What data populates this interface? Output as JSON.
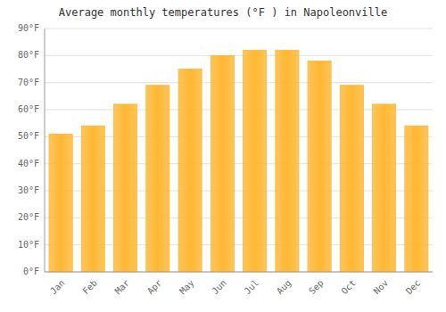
{
  "chart_data": {
    "type": "bar",
    "title": "Average monthly temperatures (°F ) in Napoleonville",
    "categories": [
      "Jan",
      "Feb",
      "Mar",
      "Apr",
      "May",
      "Jun",
      "Jul",
      "Aug",
      "Sep",
      "Oct",
      "Nov",
      "Dec"
    ],
    "values": [
      51,
      54,
      62,
      69,
      75,
      80,
      82,
      82,
      78,
      69,
      62,
      54
    ],
    "color": "#FFB732",
    "ylim": [
      0,
      90
    ],
    "yticks": [
      {
        "value": 0,
        "label": "0°F"
      },
      {
        "value": 10,
        "label": "10°F"
      },
      {
        "value": 20,
        "label": "20°F"
      },
      {
        "value": 30,
        "label": "30°F"
      },
      {
        "value": 40,
        "label": "40°F"
      },
      {
        "value": 50,
        "label": "50°F"
      },
      {
        "value": 60,
        "label": "60°F"
      },
      {
        "value": 70,
        "label": "70°F"
      },
      {
        "value": 80,
        "label": "80°F"
      },
      {
        "value": 90,
        "label": "90°F"
      }
    ],
    "grid": true
  }
}
